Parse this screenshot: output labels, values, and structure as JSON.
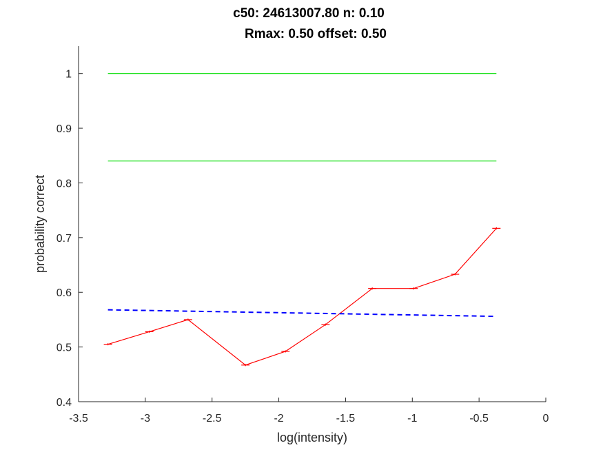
{
  "chart_data": {
    "type": "line",
    "title_lines": [
      "c50: 24613007.80 n: 0.10",
      "Rmax: 0.50 offset: 0.50"
    ],
    "xlabel": "log(intensity)",
    "ylabel": "probability correct",
    "xlim": [
      -3.5,
      0
    ],
    "ylim": [
      0.4,
      1.05
    ],
    "xticks": [
      -3.5,
      -3,
      -2.5,
      -2,
      -1.5,
      -1,
      -0.5,
      0
    ],
    "xtick_labels": [
      "-3.5",
      "-3",
      "-2.5",
      "-2",
      "-1.5",
      "-1",
      "-0.5",
      "0"
    ],
    "yticks": [
      0.4,
      0.5,
      0.6,
      0.7,
      0.8,
      0.9,
      1
    ],
    "ytick_labels": [
      "0.4",
      "0.5",
      "0.6",
      "0.7",
      "0.8",
      "0.9",
      "1"
    ],
    "grid": false,
    "legend": "none",
    "series": [
      {
        "style": "solid",
        "color": "#ff0000",
        "errorbars": true,
        "x": [
          -3.28,
          -2.97,
          -2.68,
          -2.25,
          -1.95,
          -1.65,
          -1.3,
          -0.99,
          -0.68,
          -0.37
        ],
        "y": [
          0.505,
          0.528,
          0.55,
          0.467,
          0.492,
          0.541,
          0.607,
          0.607,
          0.633,
          0.717
        ]
      },
      {
        "style": "dashed",
        "color": "#0000ff",
        "x": [
          -3.28,
          -0.37
        ],
        "y": [
          0.568,
          0.556
        ]
      },
      {
        "style": "solid",
        "color": "#00dd00",
        "x": [
          -3.28,
          -0.37
        ],
        "y": [
          1.0,
          1.0
        ]
      },
      {
        "style": "solid",
        "color": "#00dd00",
        "x": [
          -3.28,
          -0.37
        ],
        "y": [
          0.84,
          0.84
        ]
      }
    ]
  }
}
